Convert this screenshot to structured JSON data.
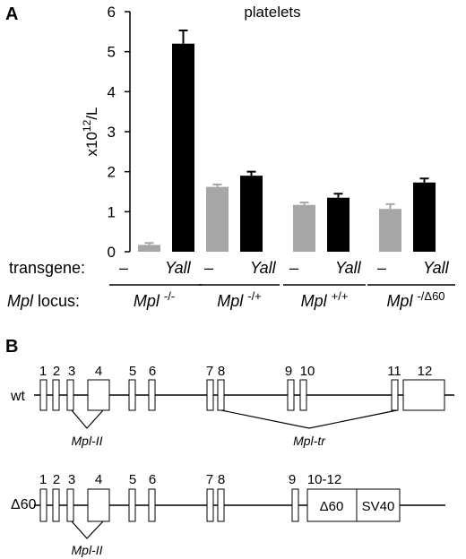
{
  "panel_a": {
    "letter": "A",
    "title": "platelets",
    "ylabel_base": "x10",
    "ylabel_exp": "12",
    "ylabel_unit": "/L",
    "row_transgene_label": "transgene:",
    "row_locus_prefix": "Mpl",
    "row_locus_suffix": " locus:",
    "transgene_minus": "–",
    "transgene_yall": "Yall",
    "groups": [
      {
        "base": "Mpl",
        "sup": "-/-"
      },
      {
        "base": "Mpl",
        "sup": "-/+"
      },
      {
        "base": "Mpl",
        "sup": "+/+"
      },
      {
        "base": "Mpl",
        "sup": "-/Δ60"
      }
    ]
  },
  "chart_data": {
    "type": "bar",
    "title": "platelets",
    "ylabel": "x10^12/L",
    "ylim": [
      0,
      6
    ],
    "yticks": [
      0,
      1,
      2,
      3,
      4,
      5,
      6
    ],
    "categories": [
      "Mpl -/-",
      "Mpl -/+",
      "Mpl +/+",
      "Mpl -/Δ60"
    ],
    "series": [
      {
        "name": "–",
        "color": "#a6a6a6",
        "values": [
          0.17,
          1.62,
          1.17,
          1.07
        ],
        "errors": [
          0.05,
          0.06,
          0.06,
          0.12
        ]
      },
      {
        "name": "Yall",
        "color": "#000000",
        "values": [
          5.2,
          1.9,
          1.35,
          1.73
        ],
        "errors": [
          0.33,
          0.1,
          0.1,
          0.1
        ]
      }
    ]
  },
  "panel_b": {
    "letter": "B",
    "wt": {
      "label": "wt",
      "exon_numbers": [
        "1",
        "2",
        "3",
        "4",
        "5",
        "6",
        "7",
        "8",
        "9",
        "10",
        "11",
        "12"
      ],
      "splice_left_label": "Mpl-II",
      "splice_right_label": "Mpl-tr"
    },
    "d60": {
      "label": "Δ60",
      "exon_numbers": [
        "1",
        "2",
        "3",
        "4",
        "5",
        "6",
        "7",
        "8",
        "9",
        "10-12"
      ],
      "box_d60": "Δ60",
      "box_sv40": "SV40",
      "splice_label": "Mpl-II"
    }
  }
}
